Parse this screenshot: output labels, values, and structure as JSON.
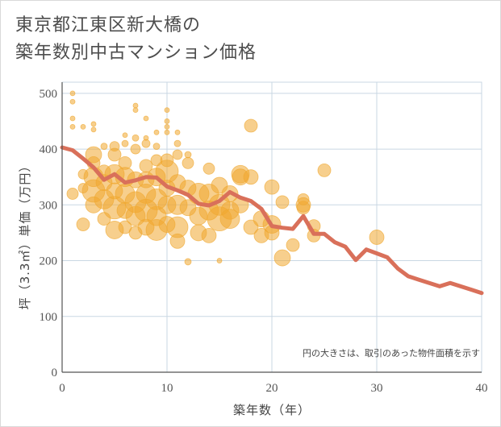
{
  "title": {
    "line1": "東京都江東区新大橋の",
    "line2": "築年数別中古マンション価格"
  },
  "colors": {
    "bubble": "#f0a830",
    "line": "#d9705a",
    "grid": "#c9d7e3",
    "axis": "#555555"
  },
  "chart_data": {
    "type": "scatter",
    "xlabel": "築年数（年）",
    "ylabel": "坪（3.3㎡）単価（万円）",
    "xlim": [
      0,
      40
    ],
    "ylim": [
      0,
      520
    ],
    "xticks": [
      0,
      10,
      20,
      30,
      40
    ],
    "yticks": [
      0,
      100,
      200,
      300,
      400,
      500
    ],
    "grid": true,
    "annotation": "円の大きさは、取引のあった物件面積を示す",
    "line_series": {
      "x": [
        0,
        1,
        2,
        3,
        4,
        5,
        6,
        7,
        8,
        9,
        10,
        11,
        12,
        13,
        14,
        15,
        16,
        17,
        18,
        19,
        20,
        21,
        22,
        23,
        24,
        25,
        26,
        27,
        28,
        29,
        30,
        31,
        32,
        33,
        34,
        35,
        36,
        37,
        38,
        39,
        40
      ],
      "y": [
        403,
        398,
        383,
        367,
        345,
        355,
        340,
        344,
        350,
        349,
        333,
        326,
        318,
        302,
        299,
        307,
        323,
        313,
        307,
        293,
        262,
        259,
        257,
        280,
        248,
        248,
        233,
        225,
        201,
        220,
        213,
        206,
        186,
        172,
        166,
        160,
        154,
        160,
        154,
        148,
        142
      ]
    },
    "bubbles": [
      {
        "x": 1,
        "y": 500,
        "s": 3
      },
      {
        "x": 1,
        "y": 485,
        "s": 3
      },
      {
        "x": 1,
        "y": 455,
        "s": 3
      },
      {
        "x": 1,
        "y": 440,
        "s": 3
      },
      {
        "x": 1,
        "y": 320,
        "s": 7
      },
      {
        "x": 2,
        "y": 440,
        "s": 3
      },
      {
        "x": 2,
        "y": 355,
        "s": 6
      },
      {
        "x": 2,
        "y": 330,
        "s": 6
      },
      {
        "x": 2,
        "y": 265,
        "s": 8
      },
      {
        "x": 3,
        "y": 445,
        "s": 3
      },
      {
        "x": 3,
        "y": 435,
        "s": 3
      },
      {
        "x": 3,
        "y": 390,
        "s": 10
      },
      {
        "x": 3,
        "y": 375,
        "s": 8
      },
      {
        "x": 3,
        "y": 350,
        "s": 12
      },
      {
        "x": 3,
        "y": 325,
        "s": 14
      },
      {
        "x": 3,
        "y": 300,
        "s": 10
      },
      {
        "x": 4,
        "y": 405,
        "s": 4
      },
      {
        "x": 4,
        "y": 360,
        "s": 8
      },
      {
        "x": 4,
        "y": 340,
        "s": 10
      },
      {
        "x": 4,
        "y": 310,
        "s": 12
      },
      {
        "x": 4,
        "y": 275,
        "s": 8
      },
      {
        "x": 5,
        "y": 405,
        "s": 6
      },
      {
        "x": 5,
        "y": 390,
        "s": 8
      },
      {
        "x": 5,
        "y": 355,
        "s": 12
      },
      {
        "x": 5,
        "y": 325,
        "s": 10
      },
      {
        "x": 5,
        "y": 295,
        "s": 14
      },
      {
        "x": 5,
        "y": 255,
        "s": 11
      },
      {
        "x": 6,
        "y": 425,
        "s": 3
      },
      {
        "x": 6,
        "y": 410,
        "s": 4
      },
      {
        "x": 6,
        "y": 375,
        "s": 8
      },
      {
        "x": 6,
        "y": 350,
        "s": 12
      },
      {
        "x": 6,
        "y": 320,
        "s": 12
      },
      {
        "x": 6,
        "y": 290,
        "s": 10
      },
      {
        "x": 6,
        "y": 260,
        "s": 8
      },
      {
        "x": 7,
        "y": 478,
        "s": 3
      },
      {
        "x": 7,
        "y": 470,
        "s": 3
      },
      {
        "x": 7,
        "y": 420,
        "s": 4
      },
      {
        "x": 7,
        "y": 400,
        "s": 6
      },
      {
        "x": 7,
        "y": 345,
        "s": 10
      },
      {
        "x": 7,
        "y": 305,
        "s": 13
      },
      {
        "x": 7,
        "y": 280,
        "s": 12
      },
      {
        "x": 7,
        "y": 250,
        "s": 8
      },
      {
        "x": 8,
        "y": 455,
        "s": 3
      },
      {
        "x": 8,
        "y": 420,
        "s": 3
      },
      {
        "x": 8,
        "y": 410,
        "s": 5
      },
      {
        "x": 8,
        "y": 370,
        "s": 8
      },
      {
        "x": 8,
        "y": 345,
        "s": 10
      },
      {
        "x": 8,
        "y": 320,
        "s": 12
      },
      {
        "x": 8,
        "y": 290,
        "s": 14
      },
      {
        "x": 8,
        "y": 260,
        "s": 10
      },
      {
        "x": 9,
        "y": 430,
        "s": 3
      },
      {
        "x": 9,
        "y": 405,
        "s": 4
      },
      {
        "x": 9,
        "y": 380,
        "s": 7
      },
      {
        "x": 9,
        "y": 350,
        "s": 11
      },
      {
        "x": 9,
        "y": 310,
        "s": 13
      },
      {
        "x": 9,
        "y": 280,
        "s": 12
      },
      {
        "x": 9,
        "y": 255,
        "s": 13
      },
      {
        "x": 10,
        "y": 470,
        "s": 3
      },
      {
        "x": 10,
        "y": 450,
        "s": 3
      },
      {
        "x": 10,
        "y": 440,
        "s": 3
      },
      {
        "x": 10,
        "y": 430,
        "s": 3
      },
      {
        "x": 10,
        "y": 380,
        "s": 8
      },
      {
        "x": 10,
        "y": 360,
        "s": 14
      },
      {
        "x": 10,
        "y": 330,
        "s": 10
      },
      {
        "x": 10,
        "y": 300,
        "s": 11
      },
      {
        "x": 10,
        "y": 265,
        "s": 10
      },
      {
        "x": 11,
        "y": 430,
        "s": 3
      },
      {
        "x": 11,
        "y": 410,
        "s": 4
      },
      {
        "x": 11,
        "y": 390,
        "s": 6
      },
      {
        "x": 11,
        "y": 340,
        "s": 10
      },
      {
        "x": 11,
        "y": 300,
        "s": 12
      },
      {
        "x": 11,
        "y": 260,
        "s": 13
      },
      {
        "x": 11,
        "y": 235,
        "s": 9
      },
      {
        "x": 12,
        "y": 390,
        "s": 4
      },
      {
        "x": 12,
        "y": 375,
        "s": 7
      },
      {
        "x": 12,
        "y": 330,
        "s": 10
      },
      {
        "x": 12,
        "y": 295,
        "s": 10
      },
      {
        "x": 12,
        "y": 198,
        "s": 4
      },
      {
        "x": 13,
        "y": 320,
        "s": 13
      },
      {
        "x": 13,
        "y": 280,
        "s": 11
      },
      {
        "x": 13,
        "y": 250,
        "s": 10
      },
      {
        "x": 14,
        "y": 365,
        "s": 7
      },
      {
        "x": 14,
        "y": 320,
        "s": 12
      },
      {
        "x": 14,
        "y": 290,
        "s": 12
      },
      {
        "x": 14,
        "y": 245,
        "s": 9
      },
      {
        "x": 15,
        "y": 335,
        "s": 10
      },
      {
        "x": 15,
        "y": 300,
        "s": 13
      },
      {
        "x": 15,
        "y": 275,
        "s": 15
      },
      {
        "x": 15,
        "y": 200,
        "s": 3
      },
      {
        "x": 16,
        "y": 320,
        "s": 10
      },
      {
        "x": 16,
        "y": 290,
        "s": 11
      },
      {
        "x": 16,
        "y": 275,
        "s": 12
      },
      {
        "x": 17,
        "y": 355,
        "s": 11
      },
      {
        "x": 17,
        "y": 350,
        "s": 10
      },
      {
        "x": 17,
        "y": 300,
        "s": 10
      },
      {
        "x": 18,
        "y": 442,
        "s": 8
      },
      {
        "x": 18,
        "y": 350,
        "s": 9
      },
      {
        "x": 18,
        "y": 260,
        "s": 9
      },
      {
        "x": 19,
        "y": 275,
        "s": 10
      },
      {
        "x": 19,
        "y": 245,
        "s": 9
      },
      {
        "x": 20,
        "y": 332,
        "s": 9
      },
      {
        "x": 20,
        "y": 265,
        "s": 11
      },
      {
        "x": 20,
        "y": 250,
        "s": 9
      },
      {
        "x": 21,
        "y": 305,
        "s": 8
      },
      {
        "x": 21,
        "y": 205,
        "s": 10
      },
      {
        "x": 22,
        "y": 228,
        "s": 8
      },
      {
        "x": 23,
        "y": 310,
        "s": 7
      },
      {
        "x": 23,
        "y": 300,
        "s": 9
      },
      {
        "x": 23,
        "y": 295,
        "s": 8
      },
      {
        "x": 24,
        "y": 262,
        "s": 8
      },
      {
        "x": 24,
        "y": 245,
        "s": 8
      },
      {
        "x": 25,
        "y": 362,
        "s": 8
      },
      {
        "x": 30,
        "y": 242,
        "s": 9
      }
    ]
  }
}
